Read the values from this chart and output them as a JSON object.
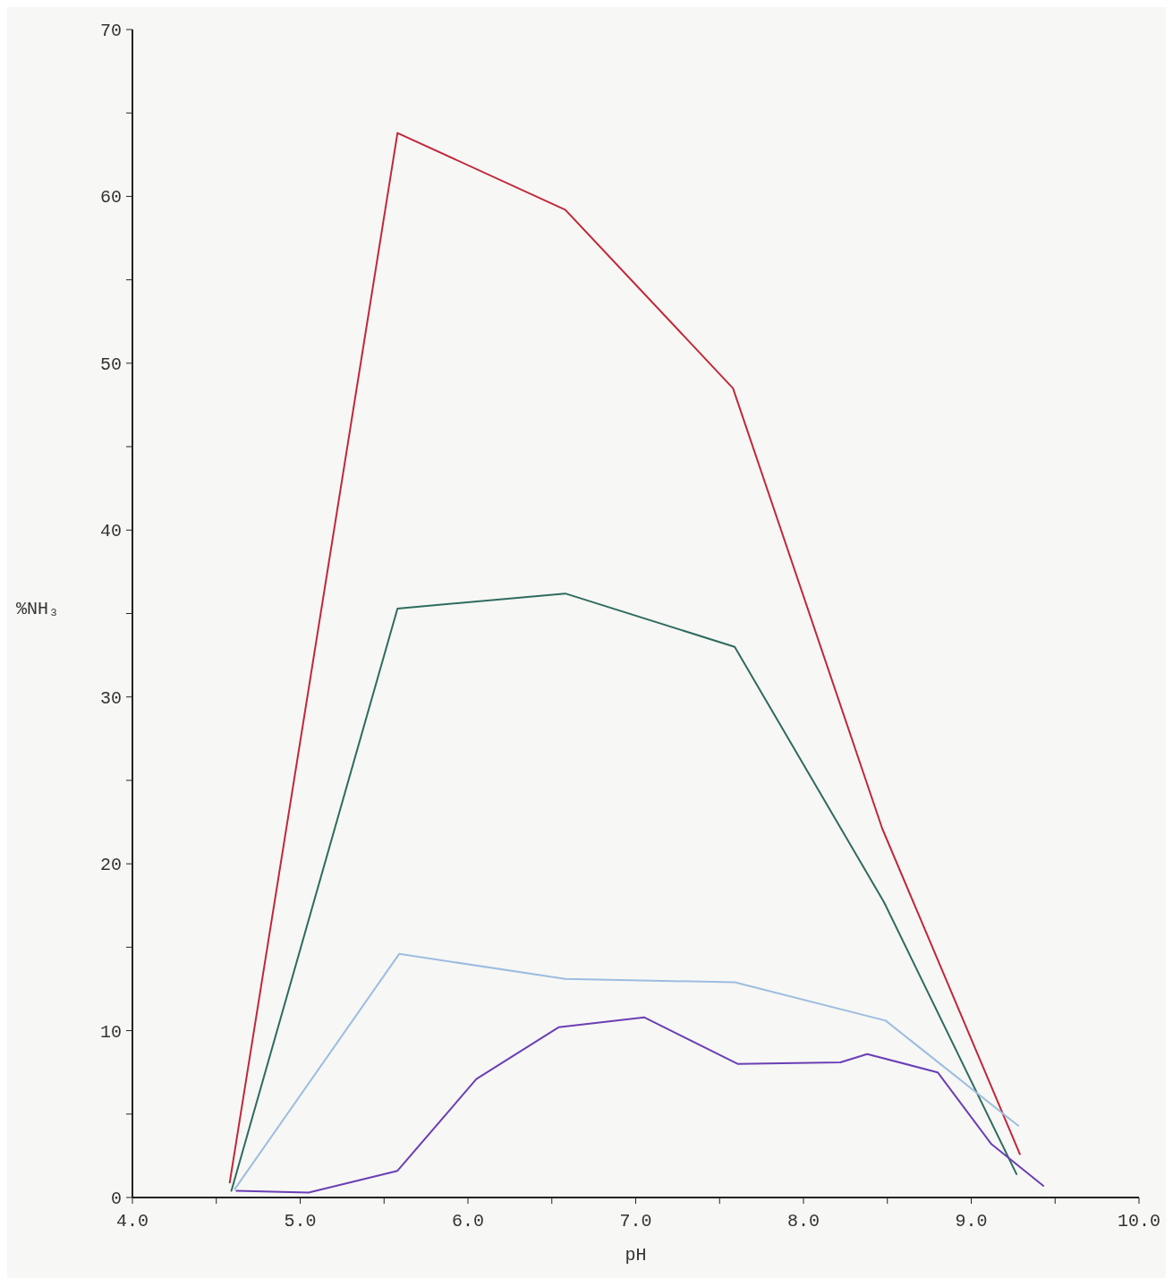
{
  "chart_data": {
    "type": "line",
    "xlabel": "pH",
    "ylabel": "%NH₃",
    "xlim": [
      4,
      10
    ],
    "ylim": [
      0,
      70
    ],
    "xticks": [
      {
        "value": 4,
        "label": "4.0"
      },
      {
        "value": 4.5,
        "label": null
      },
      {
        "value": 5,
        "label": "5.0"
      },
      {
        "value": 5.5,
        "label": null
      },
      {
        "value": 6,
        "label": "6.0"
      },
      {
        "value": 6.5,
        "label": null
      },
      {
        "value": 7,
        "label": "7.0"
      },
      {
        "value": 7.5,
        "label": null
      },
      {
        "value": 8,
        "label": "8.0"
      },
      {
        "value": 8.5,
        "label": null
      },
      {
        "value": 9,
        "label": "9.0"
      },
      {
        "value": 9.5,
        "label": null
      },
      {
        "value": 10,
        "label": "10.0"
      }
    ],
    "yticks": [
      0,
      {
        "value": 5,
        "label": null
      },
      10,
      {
        "value": 15,
        "label": null
      },
      20,
      {
        "value": 25,
        "label": null
      },
      30,
      {
        "value": 35,
        "label": null
      },
      40,
      {
        "value": 45,
        "label": null
      },
      50,
      {
        "value": 55,
        "label": null
      },
      60,
      {
        "value": 65,
        "label": null
      },
      70
    ],
    "marker": "none",
    "line_style": "solid",
    "series": [
      {
        "color": "#c0283a",
        "x": [
          4.58,
          5.58,
          6.58,
          7.58,
          8.47,
          9.29
        ],
        "values": [
          0.9,
          63.8,
          59.2,
          48.5,
          22.1,
          2.6
        ]
      },
      {
        "color": "#2e6b5e",
        "x": [
          4.59,
          5.58,
          6.58,
          7.59,
          8.48,
          9.27
        ],
        "values": [
          0.4,
          35.3,
          36.2,
          33.0,
          17.7,
          1.4
        ]
      },
      {
        "color": "#9dbde0",
        "x": [
          4.61,
          5.59,
          6.58,
          7.59,
          8.49,
          9.28
        ],
        "values": [
          0.5,
          14.6,
          13.1,
          12.9,
          10.6,
          4.3
        ]
      },
      {
        "color": "#6a3fb5",
        "x": [
          4.62,
          5.05,
          5.58,
          6.05,
          6.54,
          7.05,
          7.61,
          8.22,
          8.38,
          8.8,
          9.12,
          9.43
        ],
        "values": [
          0.4,
          0.3,
          1.6,
          7.1,
          10.2,
          10.8,
          8.0,
          8.1,
          8.6,
          7.5,
          3.2,
          0.7
        ]
      }
    ]
  }
}
